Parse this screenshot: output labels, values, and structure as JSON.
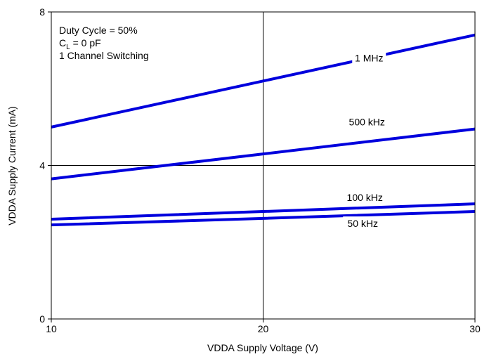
{
  "chart_data": {
    "type": "line",
    "xlabel": "VDDA Supply Voltage (V)",
    "ylabel": "VDDA Supply Current (mA)",
    "xlim": [
      10,
      30
    ],
    "ylim": [
      0,
      8
    ],
    "xticks": [
      "10",
      "20",
      "30"
    ],
    "yticks": [
      "0",
      "4",
      "8"
    ],
    "grid": true,
    "annotation": {
      "line1": "Duty Cycle = 50%",
      "line2_main": "C",
      "line2_sub": "L",
      "line2_rest": " = 0 pF",
      "line3": "1 Channel Switching"
    },
    "series": [
      {
        "name": "1 MHz",
        "x": [
          10,
          20,
          30
        ],
        "y": [
          5.0,
          6.2,
          7.4
        ]
      },
      {
        "name": "500 kHz",
        "x": [
          10,
          20,
          30
        ],
        "y": [
          3.65,
          4.3,
          4.95
        ]
      },
      {
        "name": "100 kHz",
        "x": [
          10,
          20,
          30
        ],
        "y": [
          2.6,
          2.8,
          3.0
        ]
      },
      {
        "name": "50 kHz",
        "x": [
          10,
          20,
          30
        ],
        "y": [
          2.45,
          2.62,
          2.8
        ]
      }
    ],
    "line_color": "#0000dd"
  }
}
